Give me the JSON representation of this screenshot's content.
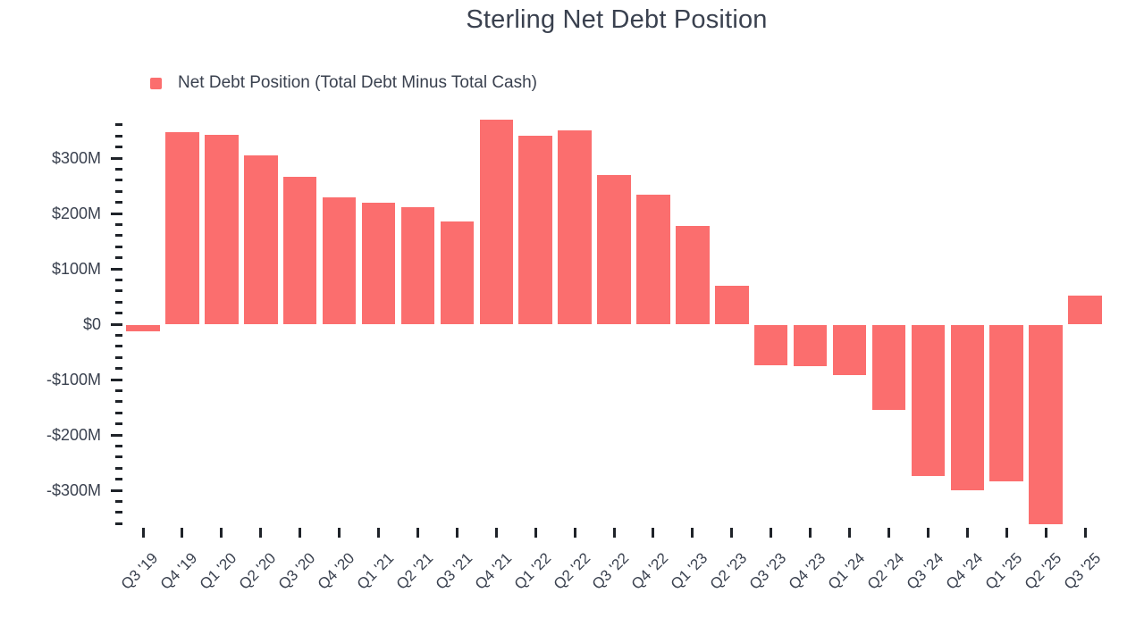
{
  "chart_data": {
    "type": "bar",
    "title": "Sterling Net Debt Position",
    "legend_label": "Net Debt Position (Total Debt Minus Total Cash)",
    "legend_position": "top-left",
    "grid": false,
    "bar_color": "#FB6E6E",
    "text_color": "#3A414F",
    "tick_color": "#1F2329",
    "categories": [
      "Q3 '19",
      "Q4 '19",
      "Q1 '20",
      "Q2 '20",
      "Q3 '20",
      "Q4 '20",
      "Q1 '21",
      "Q2 '21",
      "Q3 '21",
      "Q4 '21",
      "Q1 '22",
      "Q2 '22",
      "Q3 '22",
      "Q4 '22",
      "Q1 '23",
      "Q2 '23",
      "Q3 '23",
      "Q4 '23",
      "Q1 '24",
      "Q2 '24",
      "Q3 '24",
      "Q4 '24",
      "Q1 '25",
      "Q2 '25",
      "Q3 '25"
    ],
    "values": [
      -12,
      347,
      342,
      305,
      266,
      229,
      220,
      211,
      186,
      370,
      341,
      350,
      270,
      234,
      177,
      70,
      -72,
      -74,
      -90,
      -153,
      -273,
      -298,
      -283,
      -359,
      51
    ],
    "value_unit": "$M",
    "xlabel": "",
    "ylabel": "",
    "y_axis": {
      "range_m": [
        -360,
        360
      ],
      "minor_tick_step_m": 20,
      "major_ticks": [
        {
          "value": 300,
          "label": "$300M"
        },
        {
          "value": 200,
          "label": "$200M"
        },
        {
          "value": 100,
          "label": "$100M"
        },
        {
          "value": 0,
          "label": "$0"
        },
        {
          "value": -100,
          "label": "-$100M"
        },
        {
          "value": -200,
          "label": "-$200M"
        },
        {
          "value": -300,
          "label": "-$300M"
        }
      ]
    }
  }
}
